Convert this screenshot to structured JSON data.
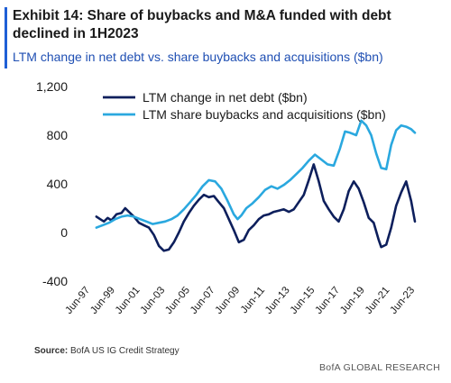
{
  "header": {
    "title": "Exhibit 14: Share of buybacks and M&A funded with debt declined in 1H2023",
    "subtitle": "LTM change in net debt vs. share buybacks and acquisitions ($bn)"
  },
  "footer": {
    "source_label": "Source:",
    "source_text": "BofA US IG Credit Strategy",
    "brand": "BofA GLOBAL RESEARCH"
  },
  "colors": {
    "accent": "#1f5fd6",
    "net_debt": "#0d1f5c",
    "buybacks": "#2aa8df"
  },
  "chart_data": {
    "type": "line",
    "title": "",
    "xlabel": "",
    "ylabel": "",
    "ylim": [
      -400,
      1200
    ],
    "yticks": [
      -400,
      0,
      400,
      800,
      1200
    ],
    "ytick_labels": [
      "-400",
      "0",
      "400",
      "800",
      "1,200"
    ],
    "xlim": [
      1997.5,
      2023.5
    ],
    "xticks": [
      1997.5,
      1999.5,
      2001.5,
      2003.5,
      2005.5,
      2007.5,
      2009.5,
      2011.5,
      2013.5,
      2015.5,
      2017.5,
      2019.5,
      2021.5,
      2023.5
    ],
    "xtick_labels": [
      "Jun-97",
      "Jun-99",
      "Jun-01",
      "Jun-03",
      "Jun-05",
      "Jun-07",
      "Jun-09",
      "Jun-11",
      "Jun-13",
      "Jun-15",
      "Jun-17",
      "Jun-19",
      "Jun-21",
      "Jun-23"
    ],
    "grid": false,
    "legend_position": "top",
    "series": [
      {
        "name": "LTM change in net debt ($bn)",
        "color": "#0d1f5c",
        "points": [
          [
            1998.0,
            130
          ],
          [
            1998.3,
            110
          ],
          [
            1998.6,
            90
          ],
          [
            1998.9,
            120
          ],
          [
            1999.2,
            100
          ],
          [
            1999.6,
            150
          ],
          [
            2000.0,
            160
          ],
          [
            2000.3,
            200
          ],
          [
            2000.6,
            170
          ],
          [
            2001.0,
            130
          ],
          [
            2001.4,
            80
          ],
          [
            2001.8,
            60
          ],
          [
            2002.2,
            40
          ],
          [
            2002.6,
            -20
          ],
          [
            2003.0,
            -110
          ],
          [
            2003.4,
            -150
          ],
          [
            2003.8,
            -140
          ],
          [
            2004.2,
            -80
          ],
          [
            2004.6,
            0
          ],
          [
            2005.0,
            90
          ],
          [
            2005.4,
            160
          ],
          [
            2005.8,
            220
          ],
          [
            2006.2,
            270
          ],
          [
            2006.6,
            310
          ],
          [
            2007.0,
            290
          ],
          [
            2007.4,
            300
          ],
          [
            2007.8,
            250
          ],
          [
            2008.2,
            200
          ],
          [
            2008.6,
            110
          ],
          [
            2009.0,
            20
          ],
          [
            2009.4,
            -80
          ],
          [
            2009.8,
            -60
          ],
          [
            2010.2,
            20
          ],
          [
            2010.6,
            60
          ],
          [
            2011.0,
            110
          ],
          [
            2011.4,
            140
          ],
          [
            2011.8,
            150
          ],
          [
            2012.2,
            170
          ],
          [
            2012.6,
            180
          ],
          [
            2013.0,
            190
          ],
          [
            2013.4,
            170
          ],
          [
            2013.8,
            190
          ],
          [
            2014.2,
            250
          ],
          [
            2014.6,
            310
          ],
          [
            2015.0,
            430
          ],
          [
            2015.4,
            560
          ],
          [
            2015.8,
            420
          ],
          [
            2016.2,
            260
          ],
          [
            2016.6,
            190
          ],
          [
            2017.0,
            130
          ],
          [
            2017.4,
            90
          ],
          [
            2017.8,
            190
          ],
          [
            2018.2,
            340
          ],
          [
            2018.6,
            420
          ],
          [
            2019.0,
            360
          ],
          [
            2019.4,
            250
          ],
          [
            2019.8,
            120
          ],
          [
            2020.2,
            80
          ],
          [
            2020.6,
            -60
          ],
          [
            2020.8,
            -120
          ],
          [
            2021.2,
            -100
          ],
          [
            2021.6,
            40
          ],
          [
            2022.0,
            220
          ],
          [
            2022.4,
            330
          ],
          [
            2022.8,
            420
          ],
          [
            2023.2,
            260
          ],
          [
            2023.5,
            90
          ]
        ]
      },
      {
        "name": "LTM share buybacks and acquisitions ($bn)",
        "color": "#2aa8df",
        "points": [
          [
            1998.0,
            40
          ],
          [
            1998.5,
            60
          ],
          [
            1999.0,
            80
          ],
          [
            1999.5,
            110
          ],
          [
            2000.0,
            130
          ],
          [
            2000.5,
            140
          ],
          [
            2001.0,
            130
          ],
          [
            2001.5,
            110
          ],
          [
            2002.0,
            90
          ],
          [
            2002.5,
            70
          ],
          [
            2003.0,
            80
          ],
          [
            2003.5,
            90
          ],
          [
            2004.0,
            110
          ],
          [
            2004.5,
            140
          ],
          [
            2005.0,
            190
          ],
          [
            2005.5,
            250
          ],
          [
            2006.0,
            310
          ],
          [
            2006.5,
            380
          ],
          [
            2007.0,
            430
          ],
          [
            2007.5,
            420
          ],
          [
            2008.0,
            360
          ],
          [
            2008.5,
            260
          ],
          [
            2009.0,
            150
          ],
          [
            2009.3,
            110
          ],
          [
            2009.6,
            140
          ],
          [
            2010.0,
            200
          ],
          [
            2010.5,
            240
          ],
          [
            2011.0,
            290
          ],
          [
            2011.5,
            350
          ],
          [
            2012.0,
            380
          ],
          [
            2012.5,
            360
          ],
          [
            2013.0,
            390
          ],
          [
            2013.5,
            430
          ],
          [
            2014.0,
            480
          ],
          [
            2014.5,
            530
          ],
          [
            2015.0,
            590
          ],
          [
            2015.5,
            640
          ],
          [
            2016.0,
            600
          ],
          [
            2016.5,
            560
          ],
          [
            2017.0,
            550
          ],
          [
            2017.5,
            690
          ],
          [
            2017.9,
            830
          ],
          [
            2018.3,
            820
          ],
          [
            2018.8,
            800
          ],
          [
            2019.2,
            920
          ],
          [
            2019.6,
            880
          ],
          [
            2020.0,
            800
          ],
          [
            2020.4,
            650
          ],
          [
            2020.8,
            530
          ],
          [
            2021.2,
            520
          ],
          [
            2021.6,
            720
          ],
          [
            2022.0,
            840
          ],
          [
            2022.4,
            880
          ],
          [
            2022.8,
            870
          ],
          [
            2023.2,
            850
          ],
          [
            2023.5,
            820
          ]
        ]
      }
    ]
  }
}
